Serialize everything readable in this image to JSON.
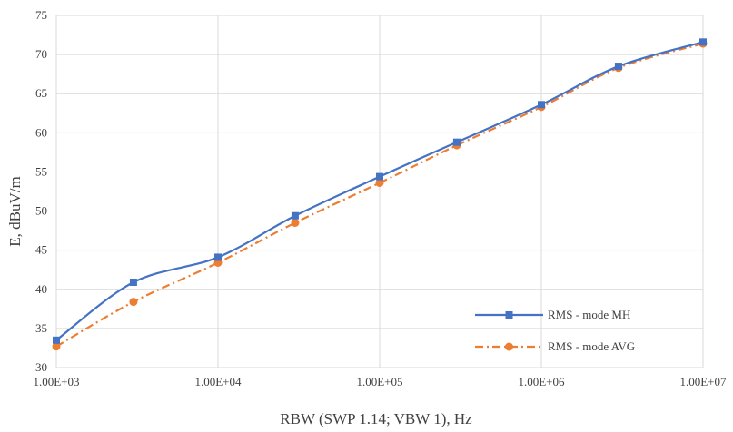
{
  "chart_data": {
    "type": "line",
    "title": "",
    "xlabel": "RBW (SWP 1.14; VBW 1), Hz",
    "ylabel": "E, dBuV/m",
    "x_scale": "log",
    "x": [
      1000,
      3000,
      10000,
      30000,
      100000,
      300000,
      1000000,
      3000000,
      10000000
    ],
    "xlim": [
      1000,
      10000000
    ],
    "ylim": [
      30,
      75
    ],
    "x_ticks": [
      1000,
      10000,
      100000,
      1000000,
      10000000
    ],
    "x_tick_labels": [
      "1.00E+03",
      "1.00E+04",
      "1.00E+05",
      "1.00E+06",
      "1.00E+07"
    ],
    "y_ticks": [
      30,
      35,
      40,
      45,
      50,
      55,
      60,
      65,
      70,
      75
    ],
    "y_tick_labels": [
      "30",
      "35",
      "40",
      "45",
      "50",
      "55",
      "60",
      "65",
      "70",
      "75"
    ],
    "grid": true,
    "legend_position": "bottom-right",
    "series": [
      {
        "name": "RMS - mode MH",
        "values": [
          33.5,
          40.9,
          44.1,
          49.4,
          54.4,
          58.8,
          63.6,
          68.5,
          71.6
        ],
        "color": "#4472C4",
        "marker": "square",
        "line_style": "solid",
        "smooth": true
      },
      {
        "name": "RMS - mode AVG",
        "values": [
          32.7,
          38.4,
          43.4,
          48.5,
          53.6,
          58.4,
          63.3,
          68.3,
          71.4
        ],
        "color": "#ED7D31",
        "marker": "circle",
        "line_style": "dash-dot",
        "smooth": true
      }
    ],
    "grid_color": "#D9D9D9",
    "text_color": "#404040"
  }
}
